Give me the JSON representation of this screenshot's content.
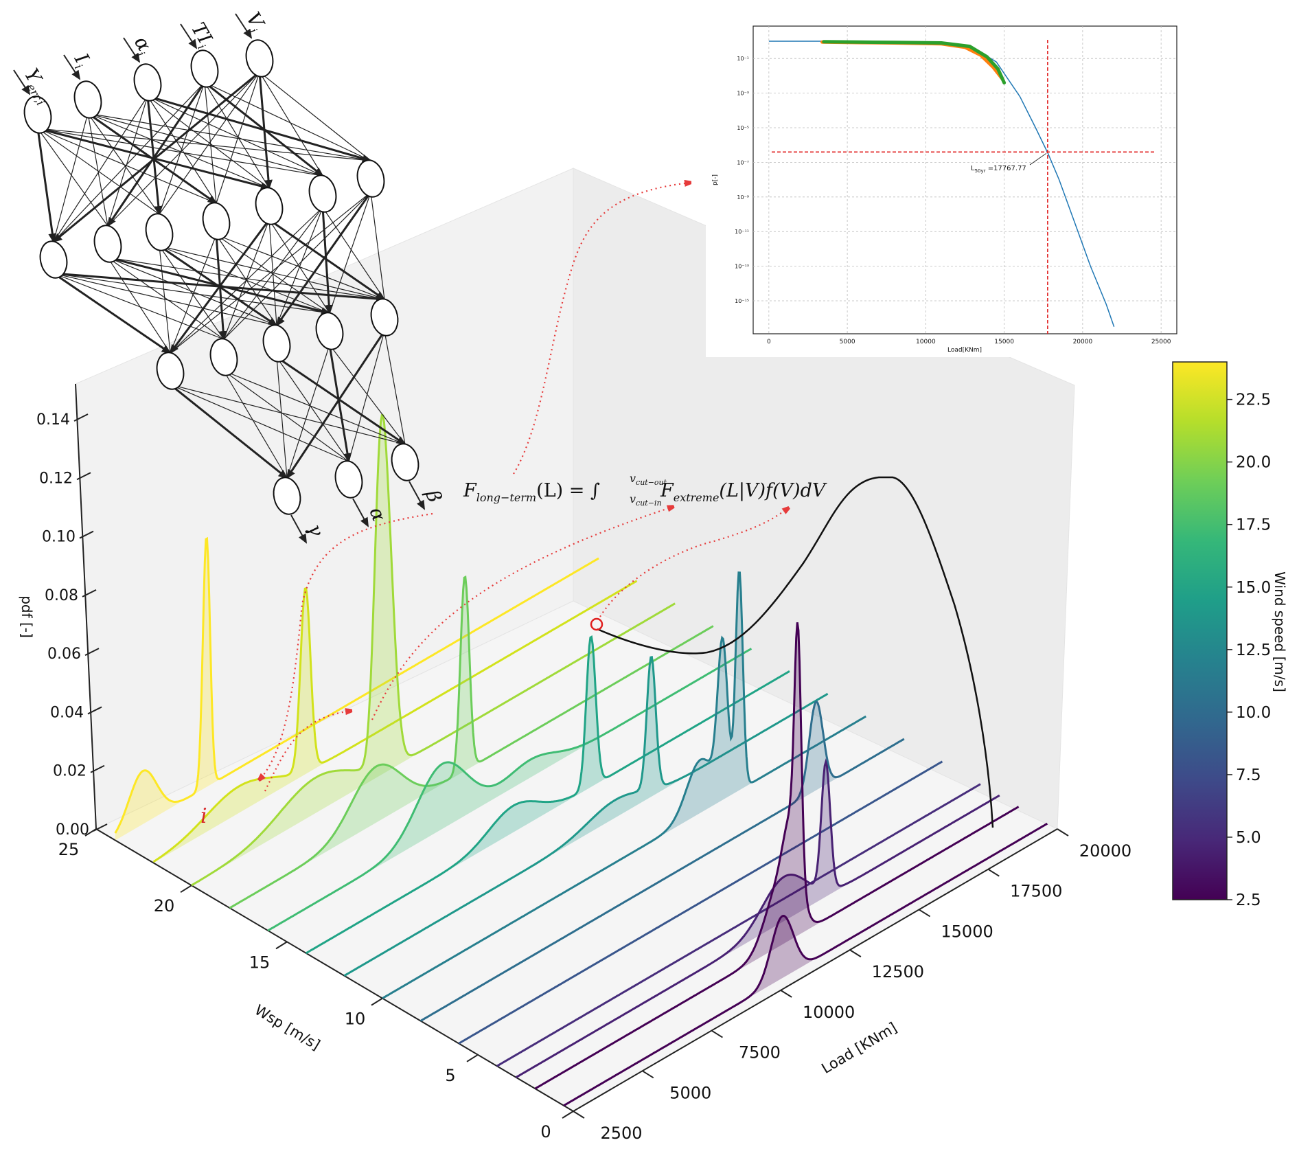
{
  "chart_data": [
    {
      "type": "3d-ridgeline",
      "zlabel": "pdf [-]",
      "zticks": [
        "0.00",
        "0.02",
        "0.04",
        "0.06",
        "0.08",
        "0.10",
        "0.12",
        "0.14"
      ],
      "zlim": [
        0,
        0.14
      ],
      "ylabel": "Wsp [m/s]",
      "yticks": [
        "0",
        "5",
        "10",
        "15",
        "20",
        "25"
      ],
      "xlabel": "Load [KNm]",
      "xticks": [
        "2500",
        "5000",
        "7500",
        "10000",
        "12500",
        "15000",
        "17500",
        "20000"
      ],
      "series": [
        {
          "wsp": 24.0,
          "color": "#fde725",
          "peaks": [
            {
              "load": 3500,
              "pdf": 0.018,
              "w": 500
            },
            {
              "load": 5800,
              "pdf": 0.085,
              "w": 130
            }
          ]
        },
        {
          "wsp": 22.0,
          "color": "#d2e21b",
          "peaks": [
            {
              "load": 5600,
              "pdf": 0.009,
              "w": 1200
            },
            {
              "load": 8000,
              "pdf": 0.062,
              "w": 180
            }
          ]
        },
        {
          "wsp": 20.0,
          "color": "#a0da39",
          "peaks": [
            {
              "load": 7000,
              "pdf": 0.012,
              "w": 1300
            },
            {
              "load": 9300,
              "pdf": 0.079,
              "w": 220
            },
            {
              "load": 9600,
              "pdf": 0.065,
              "w": 260
            }
          ]
        },
        {
          "wsp": 18.0,
          "color": "#6ccd5a",
          "peaks": [
            {
              "load": 7800,
              "pdf": 0.019,
              "w": 900
            },
            {
              "load": 11000,
              "pdf": 0.066,
              "w": 160
            }
          ]
        },
        {
          "wsp": 16.0,
          "color": "#3fbc73",
          "peaks": [
            {
              "load": 8800,
              "pdf": 0.022,
              "w": 900
            },
            {
              "load": 12000,
              "pdf": 0.006,
              "w": 900
            }
          ]
        },
        {
          "wsp": 14.0,
          "color": "#20a486",
          "peaks": [
            {
              "load": 10000,
              "pdf": 0.009,
              "w": 900
            },
            {
              "load": 12800,
              "pdf": 0.051,
              "w": 170
            }
          ]
        },
        {
          "wsp": 12.0,
          "color": "#1f988b",
          "peaks": [
            {
              "load": 12300,
              "pdf": 0.006,
              "w": 1000
            },
            {
              "load": 13600,
              "pdf": 0.045,
              "w": 160
            }
          ]
        },
        {
          "wsp": 10.0,
          "color": "#277f8e",
          "peaks": [
            {
              "load": 14000,
              "pdf": 0.018,
              "w": 500
            },
            {
              "load": 14800,
              "pdf": 0.05,
              "w": 180
            },
            {
              "load": 15400,
              "pdf": 0.074,
              "w": 130
            }
          ]
        },
        {
          "wsp": 8.0,
          "color": "#2e6e8e",
          "peaks": [
            {
              "load": 16800,
              "pdf": 0.03,
              "w": 250
            }
          ]
        },
        {
          "wsp": 6.0,
          "color": "#39568c",
          "peaks": []
        },
        {
          "wsp": 4.0,
          "color": "#472d7b",
          "peaks": []
        },
        {
          "wsp": 3.0,
          "color": "#482173",
          "peaks": [
            {
              "load": 12200,
              "pdf": 0.015,
              "w": 800
            },
            {
              "load": 13700,
              "pdf": 0.043,
              "w": 160
            }
          ]
        },
        {
          "wsp": 2.0,
          "color": "#440154",
          "peaks": [
            {
              "load": 11300,
              "pdf": 0.02,
              "w": 500
            },
            {
              "load": 12000,
              "pdf": 0.075,
              "w": 120
            },
            {
              "load": 11800,
              "pdf": 0.029,
              "w": 300
            }
          ]
        },
        {
          "wsp": 0.5,
          "color": "#440154",
          "peaks": [
            {
              "load": 10400,
              "pdf": 0.021,
              "w": 400
            }
          ]
        }
      ],
      "wind_pdf_curve": {
        "note_color": "#000000"
      }
    },
    {
      "type": "line",
      "xlabel": "Load[KNm]",
      "ylabel": "p[-]",
      "xticks": [
        "0",
        "5000",
        "10000",
        "15000",
        "20000",
        "25000"
      ],
      "yticks": [
        "10⁻¹",
        "10⁻³",
        "10⁻⁵",
        "10⁻⁷",
        "10⁻⁹",
        "10⁻¹¹",
        "10⁻¹³",
        "10⁻¹⁵"
      ],
      "xlim": [
        -1000,
        26000
      ],
      "annotation_prefix": "L",
      "annotation_sub": "50yr",
      "annotation_value": " =17767.77",
      "vline_x": 17767.77,
      "hline_exp": -6.4,
      "series": [
        {
          "color": "#1f77b4",
          "points": [
            [
              0,
              0
            ],
            [
              3500,
              0
            ],
            [
              8000,
              -0.05
            ],
            [
              11000,
              -0.1
            ],
            [
              13000,
              -0.35
            ],
            [
              14500,
              -1.2
            ],
            [
              16000,
              -3.2
            ],
            [
              17000,
              -5.0
            ],
            [
              17800,
              -6.5
            ],
            [
              18500,
              -8.0
            ],
            [
              19500,
              -10.5
            ],
            [
              20500,
              -13.0
            ],
            [
              21500,
              -15.2
            ],
            [
              22000,
              -16.5
            ]
          ]
        },
        {
          "color": "#ff7f0e",
          "points": [
            [
              3400,
              -0.05
            ],
            [
              5800,
              -0.08
            ],
            [
              8000,
              -0.1
            ],
            [
              11000,
              -0.15
            ],
            [
              12500,
              -0.35
            ],
            [
              13500,
              -0.8
            ],
            [
              14300,
              -1.5
            ],
            [
              14900,
              -2.2
            ]
          ]
        },
        {
          "color": "#2ca02c",
          "points": [
            [
              3500,
              -0.03
            ],
            [
              5700,
              -0.05
            ],
            [
              8000,
              -0.07
            ],
            [
              11000,
              -0.1
            ],
            [
              12800,
              -0.3
            ],
            [
              13900,
              -0.9
            ],
            [
              14600,
              -1.6
            ],
            [
              15000,
              -2.4
            ]
          ]
        }
      ]
    },
    {
      "type": "colorbar",
      "label": "Wind speed [m/s]",
      "ticks": [
        "2.5",
        "5.0",
        "7.5",
        "10.0",
        "12.5",
        "15.0",
        "17.5",
        "20.0",
        "22.5"
      ],
      "colors": [
        "#440154",
        "#482878",
        "#3e4a89",
        "#31688e",
        "#26828e",
        "#1f9e89",
        "#35b779",
        "#6ece58",
        "#b5de2b",
        "#fde725"
      ]
    }
  ],
  "network": {
    "inputs": [
      "Y",
      "I",
      "α",
      "TI",
      "V"
    ],
    "input_subs": [
      "err,i",
      "i",
      "i",
      "i",
      "i"
    ],
    "outputs": [
      "γ",
      "α",
      "β"
    ]
  },
  "equation": {
    "lhs_main": "F",
    "lhs_sub": "long−term",
    "lhs_arg": "(L) = ∫",
    "int_upper": "v",
    "int_upper_sub": "cut−out",
    "int_lower": "v",
    "int_lower_sub": "cut−in",
    "rhs_main": "F",
    "rhs_sub": "extreme",
    "rhs_rest": "(L|V)f(V)dV"
  },
  "annotation_i": "i"
}
